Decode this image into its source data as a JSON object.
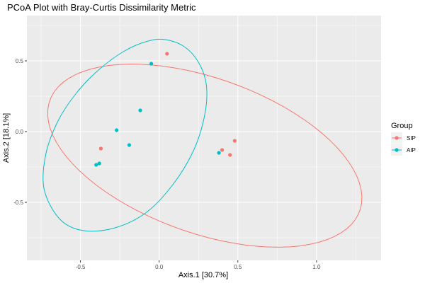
{
  "chart_data": {
    "type": "scatter",
    "title": "PCoA Plot with Bray-Curtis Dissimilarity Metric",
    "xlabel": "Axis.1   [30.7%]",
    "ylabel": "Axis.2   [18.1%]",
    "xlim": [
      -0.84,
      1.41
    ],
    "ylim": [
      -0.91,
      0.82
    ],
    "xticks": [
      {
        "value": -0.5,
        "label": "-0.5"
      },
      {
        "value": 0.0,
        "label": "0.0"
      },
      {
        "value": 0.5,
        "label": "0.5"
      },
      {
        "value": 1.0,
        "label": "1.0"
      }
    ],
    "yticks": [
      {
        "value": -0.5,
        "label": "-0.5"
      },
      {
        "value": 0.0,
        "label": "0.0"
      },
      {
        "value": 0.5,
        "label": "0.5"
      }
    ],
    "grid": true,
    "legend_title": "Group",
    "legend_position": "right",
    "series": [
      {
        "name": "SIP",
        "color": "#F8766D",
        "x": [
          0.05,
          -0.37,
          0.4,
          0.45,
          0.48
        ],
        "y": [
          0.55,
          -0.12,
          -0.13,
          -0.165,
          -0.065
        ],
        "ellipse": {
          "cx": 0.29,
          "cy": -0.17,
          "rx": 1.06,
          "ry": 0.54,
          "angle_deg": -23
        }
      },
      {
        "name": "AIP",
        "color": "#00BFC4",
        "x": [
          -0.05,
          -0.12,
          -0.27,
          -0.19,
          -0.38,
          -0.4,
          0.38
        ],
        "y": [
          0.48,
          0.15,
          0.01,
          -0.095,
          -0.225,
          -0.235,
          -0.15
        ]
      }
    ],
    "aip_ellipse_points": [
      [
        0.04,
        0.65
      ],
      [
        0.16,
        0.6
      ],
      [
        0.25,
        0.49
      ],
      [
        0.3,
        0.33
      ],
      [
        0.29,
        0.12
      ],
      [
        0.22,
        -0.13
      ],
      [
        0.09,
        -0.37
      ],
      [
        -0.08,
        -0.57
      ],
      [
        -0.28,
        -0.68
      ],
      [
        -0.48,
        -0.7
      ],
      [
        -0.63,
        -0.62
      ],
      [
        -0.73,
        -0.41
      ],
      [
        -0.72,
        -0.16
      ],
      [
        -0.64,
        0.08
      ],
      [
        -0.52,
        0.28
      ],
      [
        -0.38,
        0.44
      ],
      [
        -0.22,
        0.57
      ],
      [
        -0.07,
        0.64
      ]
    ]
  }
}
